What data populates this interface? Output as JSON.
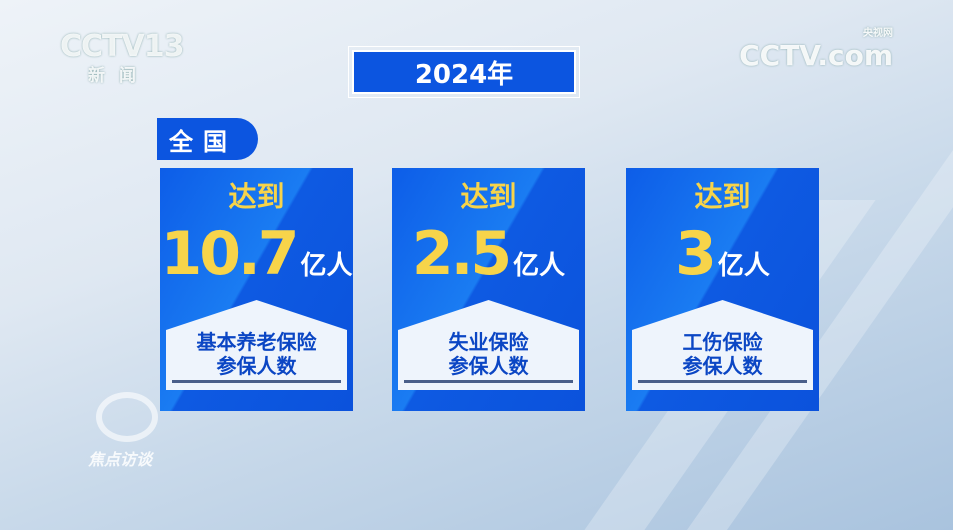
{
  "channel_logo": {
    "text": "CCTV13",
    "subtitle": "新闻"
  },
  "site_logo": {
    "text": "CCTV.com",
    "subtitle": "央视网"
  },
  "program_logo": {
    "text": "焦点访谈"
  },
  "year": "2024年",
  "region": "全国",
  "cards": [
    {
      "prefix": "达到",
      "value": "10.7",
      "unit": "亿人",
      "label1": "基本养老保险",
      "label2": "参保人数"
    },
    {
      "prefix": "达到",
      "value": "2.5",
      "unit": "亿人",
      "label1": "失业保险",
      "label2": "参保人数"
    },
    {
      "prefix": "达到",
      "value": "3",
      "unit": "亿人",
      "label1": "工伤保险",
      "label2": "参保人数"
    }
  ],
  "colors": {
    "card_blue": "#0c55e0",
    "number_yellow": "#f7d44a",
    "label_blue": "#0b46c4"
  }
}
